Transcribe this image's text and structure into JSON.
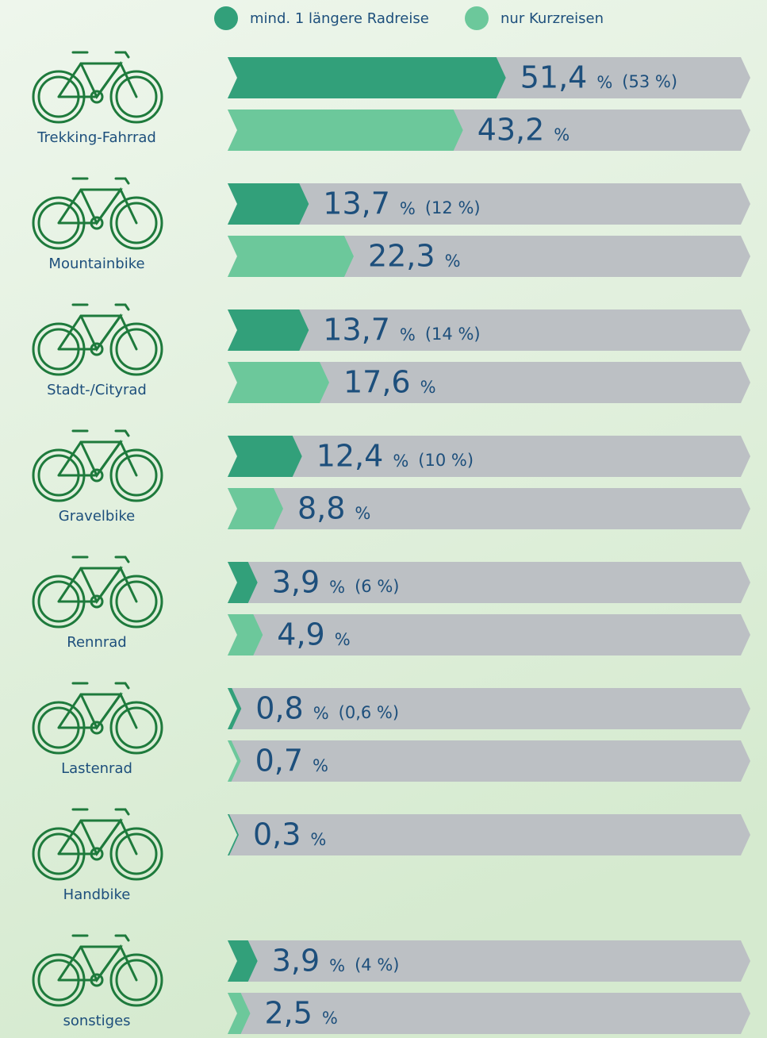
{
  "chart_data": {
    "type": "bar",
    "categories": [
      "Trekking-Fahrrad",
      "Mountainbike",
      "Stadt-/Cityrad",
      "Gravelbike",
      "Rennrad",
      "Lastenrad",
      "Handbike",
      "sonstiges"
    ],
    "unit": "%",
    "xlim": [
      0,
      100
    ],
    "series": [
      {
        "name": "mind. 1 längere Radreise",
        "color": "#32a07a",
        "values": [
          51.4,
          13.7,
          13.7,
          12.4,
          3.9,
          0.8,
          0.3,
          3.9
        ],
        "value_labels": [
          "51,4",
          "13,7",
          "13,7",
          "12,4",
          "3,9",
          "0,8",
          "0,3",
          "3,9"
        ],
        "comparison_values": [
          53,
          12,
          14,
          10,
          6,
          0.6,
          null,
          4
        ],
        "comparison_labels": [
          "(53 %)",
          "(12 %)",
          "(14 %)",
          "(10 %)",
          "(6 %)",
          "(0,6 %)",
          null,
          "(4 %)"
        ]
      },
      {
        "name": "nur Kurzreisen",
        "color": "#6cc89b",
        "values": [
          43.2,
          22.3,
          17.6,
          8.8,
          4.9,
          0.7,
          null,
          2.5
        ],
        "value_labels": [
          "43,2",
          "22,3",
          "17,6",
          "8,8",
          "4,9",
          "0,7",
          null,
          "2,5"
        ]
      }
    ]
  }
}
